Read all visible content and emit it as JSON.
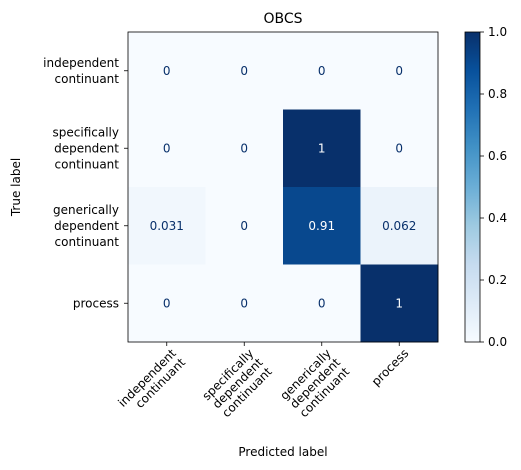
{
  "chart_data": {
    "type": "heatmap",
    "title": "OBCS",
    "xlabel": "Predicted label",
    "ylabel": "True label",
    "x_categories": [
      [
        "independent",
        "continuant"
      ],
      [
        "specifically",
        "dependent",
        "continuant"
      ],
      [
        "generically",
        "dependent",
        "continuant"
      ],
      [
        "process"
      ]
    ],
    "y_categories": [
      [
        "independent",
        "continuant"
      ],
      [
        "specifically",
        "dependent",
        "continuant"
      ],
      [
        "generically",
        "dependent",
        "continuant"
      ],
      [
        "process"
      ]
    ],
    "values": [
      [
        0,
        0,
        0,
        0
      ],
      [
        0,
        0,
        1,
        0
      ],
      [
        0.031,
        0,
        0.91,
        0.062
      ],
      [
        0,
        0,
        0,
        1
      ]
    ],
    "cell_labels": [
      [
        "0",
        "0",
        "0",
        "0"
      ],
      [
        "0",
        "0",
        "1",
        "0"
      ],
      [
        "0.031",
        "0",
        "0.91",
        "0.062"
      ],
      [
        "0",
        "0",
        "0",
        "1"
      ]
    ],
    "colormap": "Blues",
    "color_range": [
      0.0,
      1.0
    ],
    "colorbar_ticks": [
      "0.0",
      "0.2",
      "0.4",
      "0.6",
      "0.8",
      "1.0"
    ],
    "colorbar_tick_values": [
      0.0,
      0.2,
      0.4,
      0.6,
      0.8,
      1.0
    ]
  }
}
